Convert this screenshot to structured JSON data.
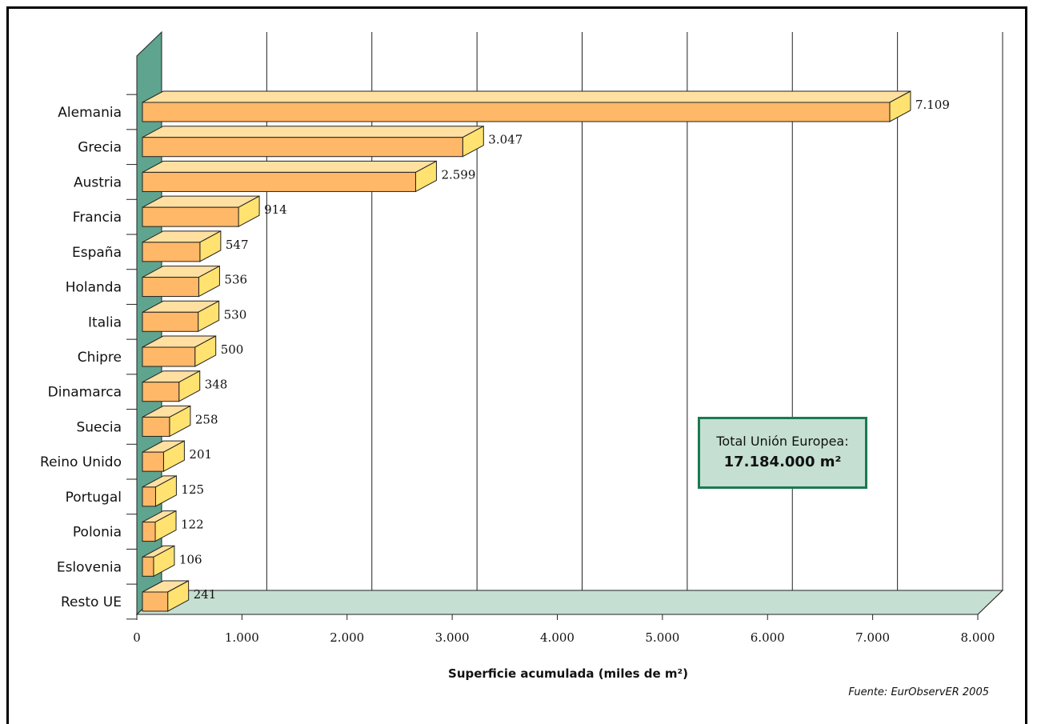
{
  "chart_data": {
    "type": "bar",
    "orientation": "horizontal",
    "categories": [
      "Alemania",
      "Grecia",
      "Austria",
      "Francia",
      "España",
      "Holanda",
      "Italia",
      "Chipre",
      "Dinamarca",
      "Suecia",
      "Reino Unido",
      "Portugal",
      "Polonia",
      "Eslovenia",
      "Resto UE"
    ],
    "values": [
      7109,
      3047,
      2599,
      914,
      547,
      536,
      530,
      500,
      348,
      258,
      201,
      125,
      122,
      106,
      241
    ],
    "value_labels": [
      "7.109",
      "3.047",
      "2.599",
      "914",
      "547",
      "536",
      "530",
      "500",
      "348",
      "258",
      "201",
      "125",
      "122",
      "106",
      "241"
    ],
    "xlabel": "Superficie acumulada (miles de m²)",
    "xlim": [
      0,
      8000
    ],
    "xticks": [
      "0",
      "1.000",
      "2.000",
      "3.000",
      "4.000",
      "5.000",
      "6.000",
      "7.000",
      "8.000"
    ],
    "grid": true,
    "colors": {
      "bar_front": "#ffb868",
      "bar_end": "#ffe270",
      "bar_top": "#ffe0a0",
      "wall": "#5fa48f",
      "floor": "#c5dfd2"
    }
  },
  "annotation": {
    "line1": "Total Unión Europea:",
    "line2": "17.184.000 m²"
  },
  "source": "Fuente: EurObservER 2005"
}
